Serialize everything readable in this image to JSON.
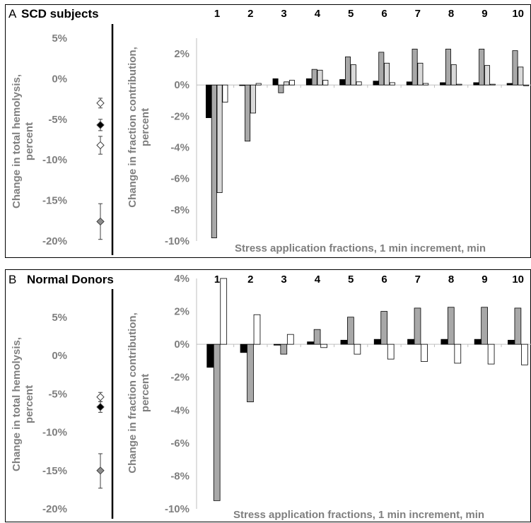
{
  "colors": {
    "black": "#000000",
    "dark_gray": "#a8a8a8",
    "light_gray": "#d9d9d9",
    "white": "#ffffff",
    "axis": "#bfbfbf",
    "text_gray": "#7f7f7f"
  },
  "chart_data": [
    {
      "type": "scatter",
      "panel_letter": "A",
      "title": "SCD subjects",
      "ylabel": "Change in total hemolysis, percent",
      "ylim": [
        -20,
        5
      ],
      "yticks": [
        "5%",
        "0%",
        "-5%",
        "-10%",
        "-15%",
        "-20%"
      ],
      "points": [
        {
          "marker": "white-diamond",
          "value": -3.0,
          "err_low": -3.6,
          "err_high": -2.4
        },
        {
          "marker": "black-diamond",
          "value": -5.7,
          "err_low": -6.4,
          "err_high": -5.0
        },
        {
          "marker": "white-diamond",
          "value": -8.2,
          "err_low": -9.3,
          "err_high": -7.1
        },
        {
          "marker": "gray-diamond",
          "value": -17.6,
          "err_low": -19.8,
          "err_high": -15.4
        }
      ]
    },
    {
      "type": "bar",
      "panel_letter": "A",
      "ylabel": "Change in fraction contribution, percent",
      "xlabel": "Stress application fractions, 1 min increment, min",
      "ylim": [
        -10,
        3
      ],
      "yticks": [
        "2%",
        "0%",
        "-2%",
        "-4%",
        "-6%",
        "-8%",
        "-10%"
      ],
      "categories": [
        "1",
        "2",
        "3",
        "4",
        "5",
        "6",
        "7",
        "8",
        "9",
        "10"
      ],
      "series": [
        {
          "fill": "black",
          "values": [
            -2.1,
            0.0,
            0.4,
            0.4,
            0.35,
            0.25,
            0.2,
            0.15,
            0.15,
            0.1
          ]
        },
        {
          "fill": "dark_gray",
          "values": [
            -9.8,
            -3.6,
            -0.5,
            1.0,
            1.8,
            2.1,
            2.3,
            2.3,
            2.3,
            2.2
          ]
        },
        {
          "fill": "light_gray",
          "values": [
            -6.9,
            -1.8,
            0.2,
            0.95,
            1.3,
            1.4,
            1.4,
            1.3,
            1.25,
            1.15
          ]
        },
        {
          "fill": "white",
          "values": [
            -1.1,
            0.1,
            0.3,
            0.3,
            0.2,
            0.15,
            0.1,
            0.05,
            0.05,
            -0.05
          ]
        }
      ]
    },
    {
      "type": "scatter",
      "panel_letter": "B",
      "title": "Normal Donors",
      "ylabel": "Change in total hemolysis, percent",
      "ylim": [
        -20,
        5
      ],
      "yticks": [
        "5%",
        "0%",
        "-5%",
        "-10%",
        "-15%",
        "-20%"
      ],
      "points": [
        {
          "marker": "white-diamond",
          "value": -5.4,
          "err_low": -6.0,
          "err_high": -4.8
        },
        {
          "marker": "black-diamond",
          "value": -6.7,
          "err_low": -7.4,
          "err_high": -6.0
        },
        {
          "marker": "gray-diamond",
          "value": -15.0,
          "err_low": -17.3,
          "err_high": -12.8
        }
      ]
    },
    {
      "type": "bar",
      "panel_letter": "B",
      "ylabel": "Change in fraction contribution, percent",
      "xlabel": "Stress application fractions, 1 min increment, min",
      "ylim": [
        -10,
        4
      ],
      "yticks": [
        "4%",
        "2%",
        "0%",
        "-2%",
        "-4%",
        "-6%",
        "-8%",
        "-10%"
      ],
      "categories": [
        "1",
        "2",
        "3",
        "4",
        "5",
        "6",
        "7",
        "8",
        "9",
        "10"
      ],
      "series": [
        {
          "fill": "black",
          "values": [
            -1.4,
            -0.5,
            -0.05,
            0.15,
            0.25,
            0.3,
            0.3,
            0.3,
            0.3,
            0.25
          ]
        },
        {
          "fill": "dark_gray",
          "values": [
            -9.5,
            -3.5,
            -0.6,
            0.9,
            1.65,
            2.0,
            2.2,
            2.25,
            2.25,
            2.2
          ]
        },
        {
          "fill": "white",
          "values": [
            4.0,
            1.8,
            0.6,
            -0.2,
            -0.6,
            -0.9,
            -1.05,
            -1.15,
            -1.2,
            -1.25
          ]
        }
      ]
    }
  ]
}
